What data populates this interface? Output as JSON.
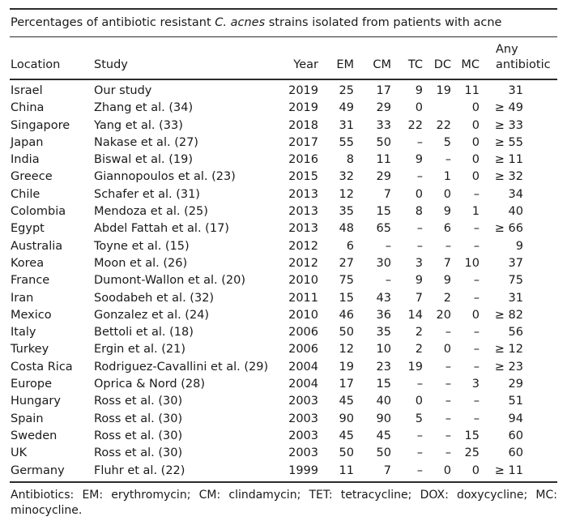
{
  "title": {
    "prefix": "Percentages of antibiotic resistant ",
    "species": "C. acnes",
    "suffix": " strains isolated from patients with acne"
  },
  "table": {
    "columns": [
      "Location",
      "Study",
      "Year",
      "EM",
      "CM",
      "TC",
      "DC",
      "MC",
      "Any\nantibiotic"
    ],
    "column_keys": [
      "location",
      "study",
      "year",
      "em",
      "cm",
      "tc",
      "dc",
      "mc",
      "any-antibiotic"
    ],
    "rows": [
      [
        "Israel",
        "Our study",
        "2019",
        "25",
        "17",
        "9",
        "19",
        "11",
        "31"
      ],
      [
        "China",
        "Zhang et al. (34)",
        "2019",
        "49",
        "29",
        "0",
        "",
        "0",
        "≥ 49"
      ],
      [
        "Singapore",
        "Yang et al. (33)",
        "2018",
        "31",
        "33",
        "22",
        "22",
        "0",
        "≥ 33"
      ],
      [
        "Japan",
        "Nakase et al. (27)",
        "2017",
        "55",
        "50",
        "–",
        "5",
        "0",
        "≥ 55"
      ],
      [
        "India",
        "Biswal et al. (19)",
        "2016",
        "8",
        "11",
        "9",
        "–",
        "0",
        "≥ 11"
      ],
      [
        "Greece",
        "Giannopoulos et al. (23)",
        "2015",
        "32",
        "29",
        "–",
        "1",
        "0",
        "≥ 32"
      ],
      [
        "Chile",
        "Schafer et al. (31)",
        "2013",
        "12",
        "7",
        "0",
        "0",
        "–",
        "34"
      ],
      [
        "Colombia",
        "Mendoza et al. (25)",
        "2013",
        "35",
        "15",
        "8",
        "9",
        "1",
        "40"
      ],
      [
        "Egypt",
        "Abdel Fattah et al. (17)",
        "2013",
        "48",
        "65",
        "–",
        "6",
        "–",
        "≥ 66"
      ],
      [
        "Australia",
        "Toyne et al. (15)",
        "2012",
        "6",
        "–",
        "–",
        "–",
        "–",
        "9"
      ],
      [
        "Korea",
        "Moon et al. (26)",
        "2012",
        "27",
        "30",
        "3",
        "7",
        "10",
        "37"
      ],
      [
        "France",
        "Dumont-Wallon et al. (20)",
        "2010",
        "75",
        "–",
        "9",
        "9",
        "–",
        "75"
      ],
      [
        "Iran",
        "Soodabeh et al. (32)",
        "2011",
        "15",
        "43",
        "7",
        "2",
        "–",
        "31"
      ],
      [
        "Mexico",
        "Gonzalez et al. (24)",
        "2010",
        "46",
        "36",
        "14",
        "20",
        "0",
        "≥ 82"
      ],
      [
        "Italy",
        "Bettoli et al. (18)",
        "2006",
        "50",
        "35",
        "2",
        "–",
        "–",
        "56"
      ],
      [
        "Turkey",
        "Ergin et al. (21)",
        "2006",
        "12",
        "10",
        "2",
        "0",
        "–",
        "≥ 12"
      ],
      [
        "Costa Rica",
        "Rodriguez-Cavallini et al. (29)",
        "2004",
        "19",
        "23",
        "19",
        "–",
        "–",
        "≥ 23"
      ],
      [
        "Europe",
        "Oprica & Nord (28)",
        "2004",
        "17",
        "15",
        "–",
        "–",
        "3",
        "29"
      ],
      [
        "Hungary",
        "Ross et al. (30)",
        "2003",
        "45",
        "40",
        "0",
        "–",
        "–",
        "51"
      ],
      [
        "Spain",
        "Ross et al. (30)",
        "2003",
        "90",
        "90",
        "5",
        "–",
        "–",
        "94"
      ],
      [
        "Sweden",
        "Ross et al. (30)",
        "2003",
        "45",
        "45",
        "–",
        "–",
        "15",
        "60"
      ],
      [
        "UK",
        "Ross et al. (30)",
        "2003",
        "50",
        "50",
        "–",
        "–",
        "25",
        "60"
      ],
      [
        "Germany",
        "Fluhr et al. (22)",
        "1999",
        "11",
        "7",
        "–",
        "0",
        "0",
        "≥ 11"
      ]
    ]
  },
  "footnote": {
    "line1": "Antibiotics: EM: erythromycin; CM: clindamycin; TET: tetracycline; DOX: doxycycline; MC:",
    "line2": "minocycline."
  },
  "colors": {
    "text": "#1a1a1a",
    "rule": "#2b2b2b",
    "background": "#ffffff"
  }
}
